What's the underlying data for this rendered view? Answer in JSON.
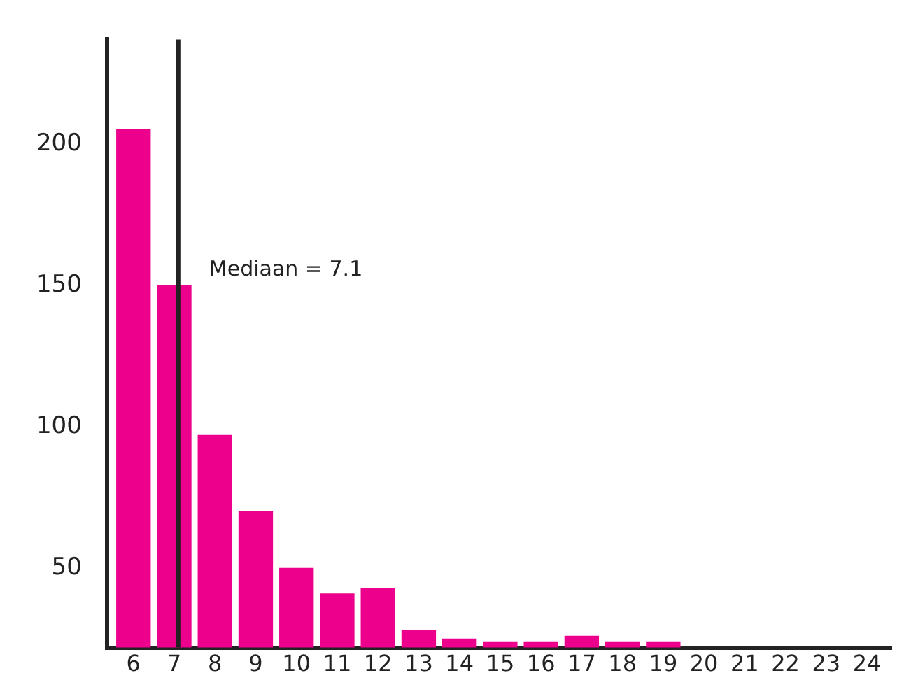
{
  "chart_data": {
    "type": "bar",
    "x": [
      6,
      7,
      8,
      9,
      10,
      11,
      12,
      13,
      14,
      15,
      16,
      17,
      18,
      19
    ],
    "values": [
      205,
      150,
      97,
      70,
      50,
      41,
      43,
      28,
      25,
      24,
      24,
      26,
      24,
      24
    ],
    "color": "#ec008c",
    "xlim": [
      5.35,
      24.6
    ],
    "xticks": [
      6,
      7,
      8,
      9,
      10,
      11,
      12,
      13,
      14,
      15,
      16,
      17,
      18,
      19,
      20,
      21,
      22,
      23,
      24
    ],
    "ylim": [
      22,
      237
    ],
    "yticks": [
      50,
      100,
      150,
      200
    ],
    "ref_lines": [
      {
        "axis": "x",
        "value": 7.1,
        "label": "Mediaan = 7.1",
        "color": "#222222"
      }
    ],
    "grid": false,
    "legend": false
  }
}
